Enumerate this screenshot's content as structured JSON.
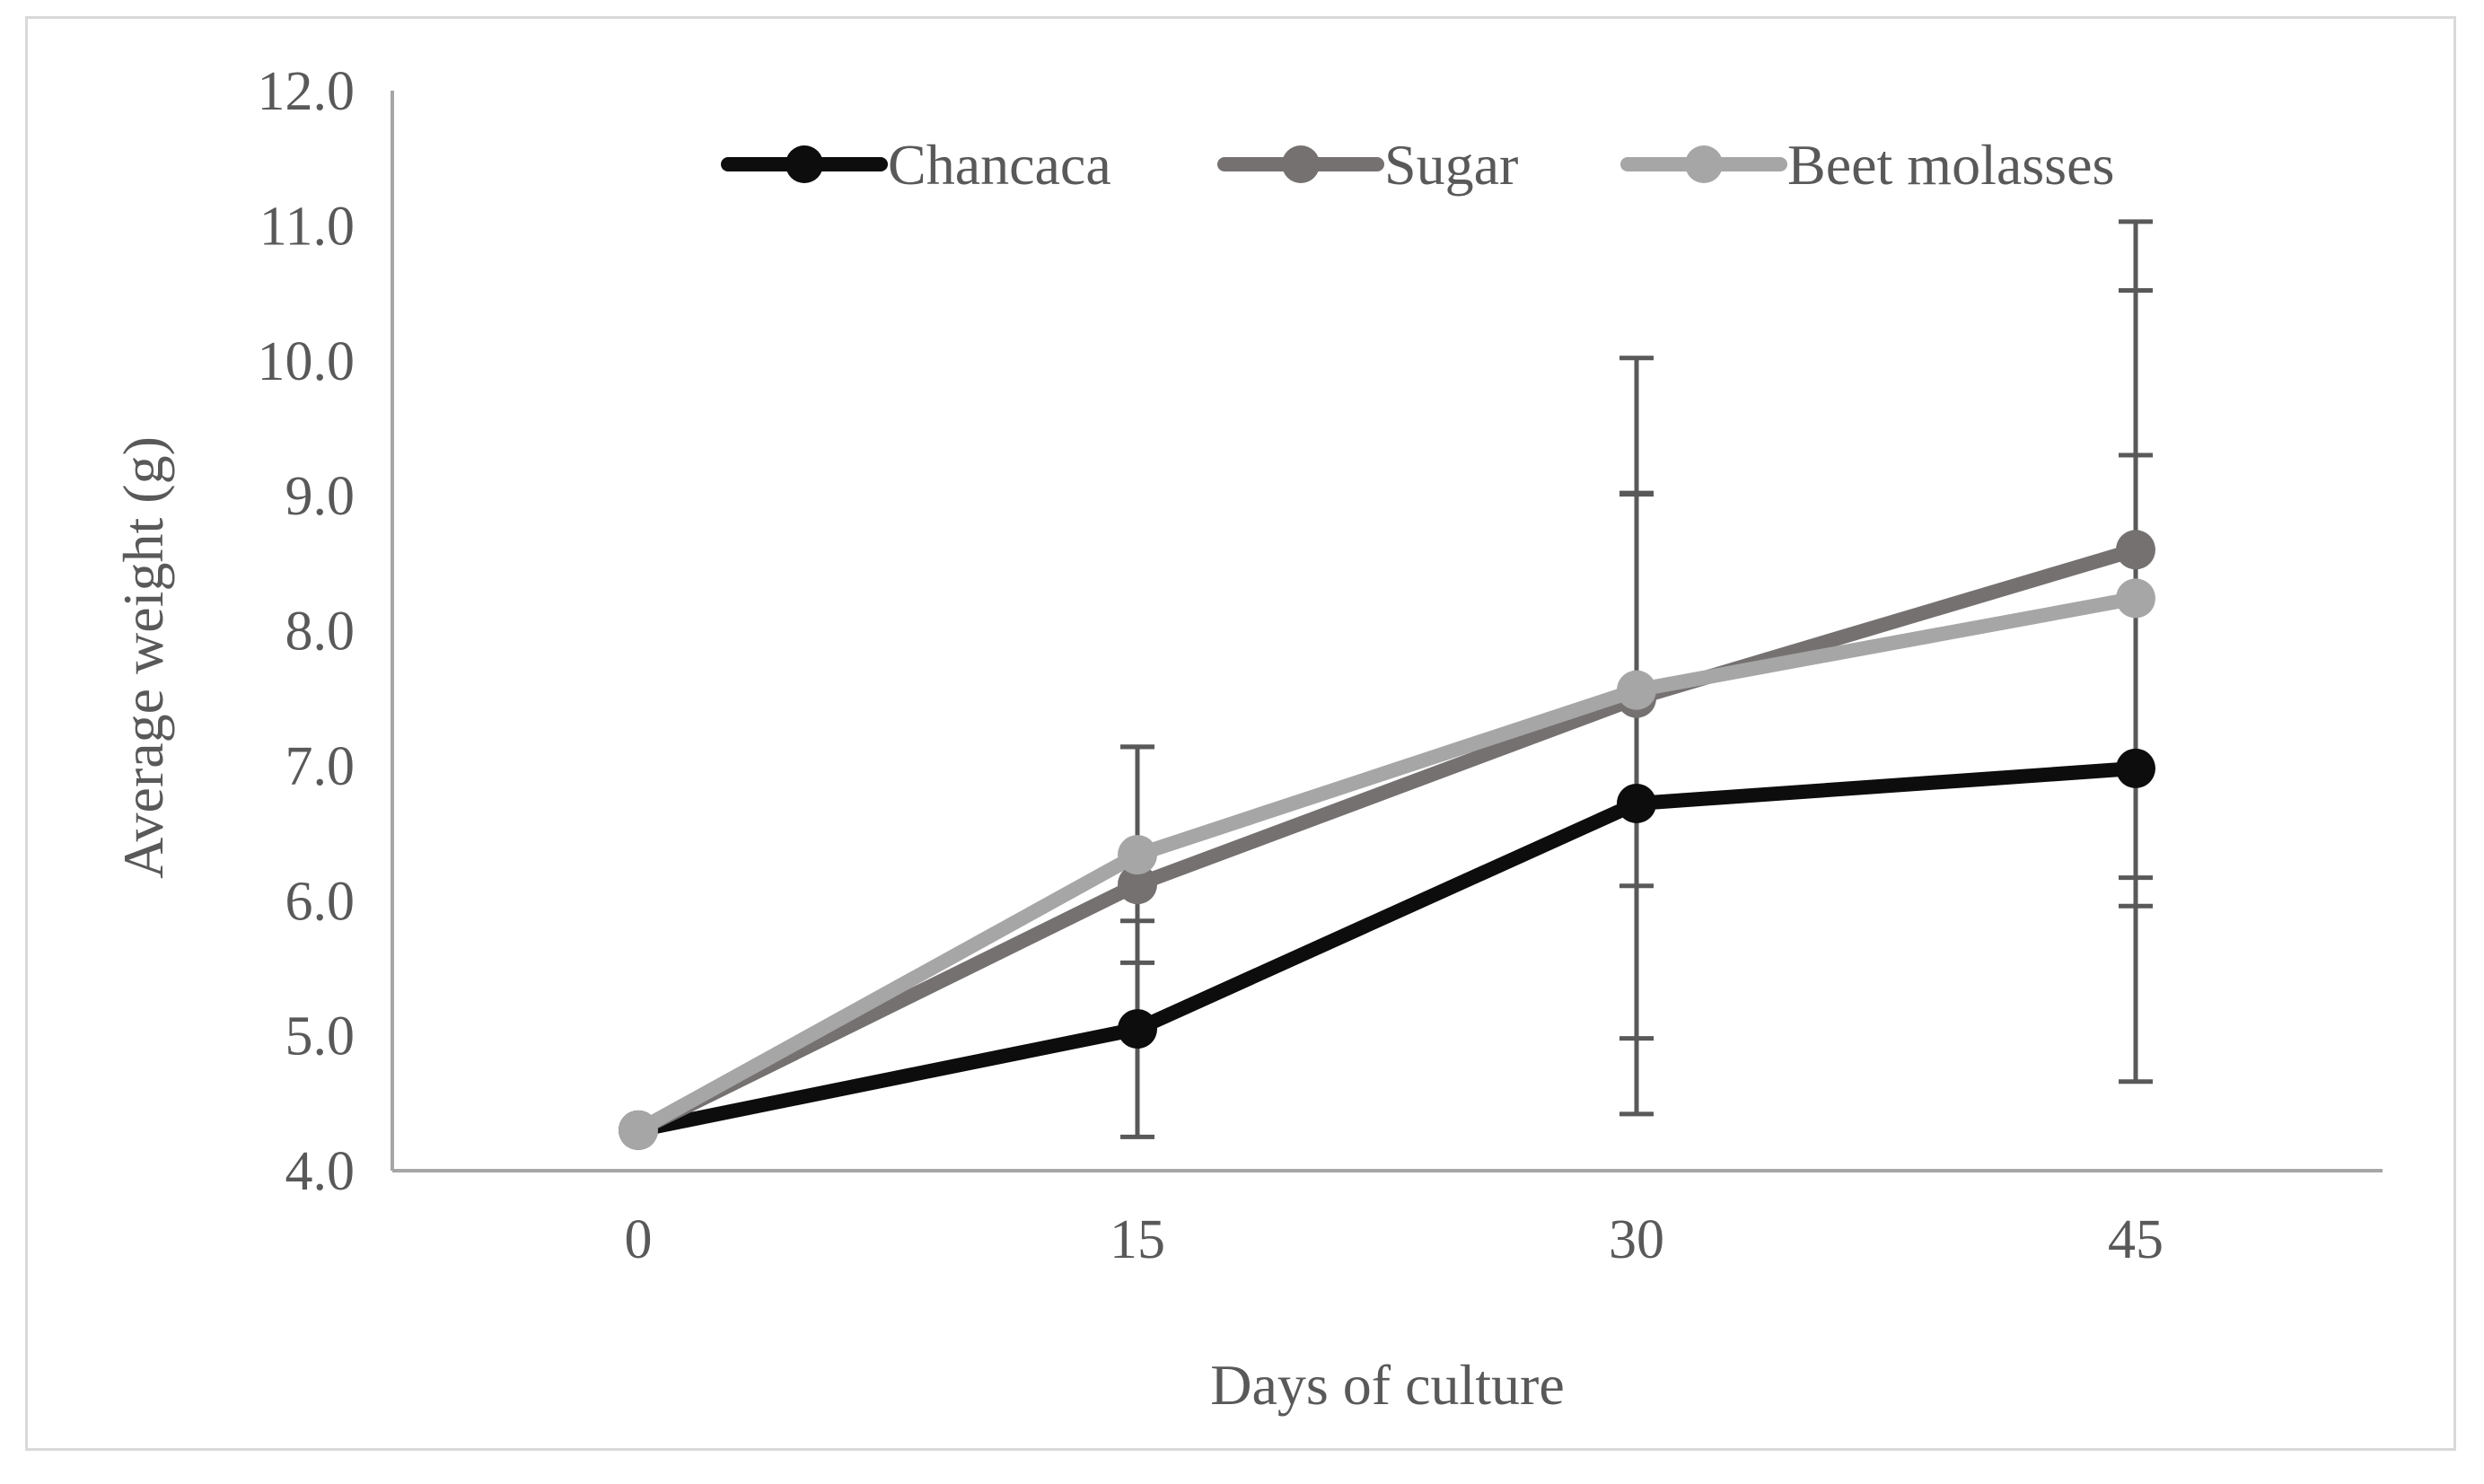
{
  "chart_data": {
    "type": "line",
    "title": "",
    "xlabel": "Days of culture",
    "ylabel": "Average weight (g)",
    "categories": [
      "0",
      "15",
      "30",
      "45"
    ],
    "ylim": [
      4.0,
      12.0
    ],
    "yticks": [
      "4.0",
      "5.0",
      "6.0",
      "7.0",
      "8.0",
      "9.0",
      "10.0",
      "11.0",
      "12.0"
    ],
    "grid": false,
    "legend_position": "top",
    "series": [
      {
        "name": "Chancaca",
        "color": "#0d0d0d",
        "values": [
          4.3,
          5.05,
          6.72,
          6.98
        ],
        "error": [
          0,
          0.8,
          2.3,
          2.32
        ]
      },
      {
        "name": "Sugar",
        "color": "#767171",
        "values": [
          4.3,
          6.12,
          7.5,
          8.6
        ],
        "error": [
          0,
          1.02,
          2.52,
          2.43
        ]
      },
      {
        "name": "Beet molasses",
        "color": "#a6a6a6",
        "values": [
          4.3,
          6.34,
          7.56,
          8.24
        ],
        "error": [
          0,
          0.8,
          1.45,
          2.28
        ]
      }
    ]
  }
}
